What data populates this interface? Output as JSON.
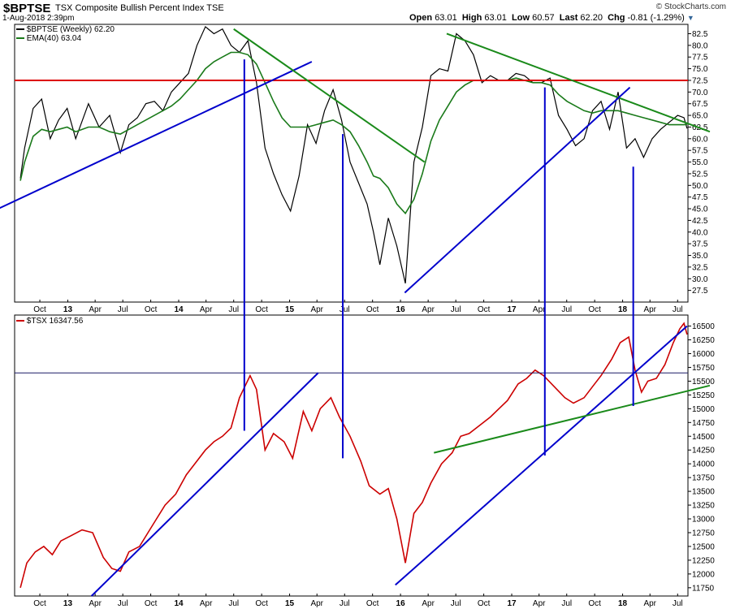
{
  "header": {
    "symbol": "$BPTSE",
    "name": "TSX Composite Bullish Percent Index  TSE",
    "date": "1-Aug-2018 2:39pm",
    "open_label": "Open",
    "open": "63.01",
    "high_label": "High",
    "high": "63.01",
    "low_label": "Low",
    "low": "60.57",
    "last_label": "Last",
    "last": "62.20",
    "chg_label": "Chg",
    "chg": "-0.81 (-1.29%)",
    "credit": "© StockCharts.com"
  },
  "colors": {
    "price": "#000000",
    "ema": "#1a7a1a",
    "tsx": "#cc0000",
    "trend_blue": "#0000cc",
    "trend_green": "#1a8a1a",
    "resistance": "#dd0000"
  },
  "chart_data": [
    {
      "type": "line",
      "legend": [
        "$BPTSE (Weekly) 62.20",
        "EMA(40) 63.04"
      ],
      "ylim": [
        25,
        84.5
      ],
      "yticks": [
        "82.5",
        "80.0",
        "77.5",
        "75.0",
        "72.5",
        "70.0",
        "67.5",
        "65.0",
        "62.5",
        "60.0",
        "57.5",
        "55.0",
        "52.5",
        "50.0",
        "47.5",
        "45.0",
        "42.5",
        "40.0",
        "37.5",
        "35.0",
        "32.5",
        "30.0",
        "27.5"
      ],
      "xticks": [
        "Oct",
        "13",
        "Apr",
        "Jul",
        "Oct",
        "14",
        "Apr",
        "Jul",
        "Oct",
        "15",
        "Apr",
        "Jul",
        "Oct",
        "16",
        "Apr",
        "Jul",
        "Oct",
        "17",
        "Apr",
        "Jul",
        "Oct",
        "18",
        "Apr",
        "Jul"
      ],
      "x": [
        "2012-07-29",
        "2012-08-12",
        "2012-09-09",
        "2012-10-07",
        "2012-11-04",
        "2012-12-02",
        "2012-12-30",
        "2013-01-27",
        "2013-03-10",
        "2013-04-14",
        "2013-05-19",
        "2013-06-23",
        "2013-07-21",
        "2013-08-18",
        "2013-09-15",
        "2013-10-13",
        "2013-11-10",
        "2013-12-08",
        "2014-01-05",
        "2014-02-02",
        "2014-03-02",
        "2014-03-30",
        "2014-04-27",
        "2014-05-25",
        "2014-06-22",
        "2014-07-20",
        "2014-08-17",
        "2014-09-14",
        "2014-10-12",
        "2014-11-09",
        "2014-12-07",
        "2015-01-04",
        "2015-02-01",
        "2015-03-01",
        "2015-03-29",
        "2015-04-26",
        "2015-05-24",
        "2015-06-21",
        "2015-07-19",
        "2015-08-16",
        "2015-09-13",
        "2015-10-04",
        "2015-10-25",
        "2015-11-22",
        "2015-12-20",
        "2016-01-17",
        "2016-02-14",
        "2016-03-13",
        "2016-04-10",
        "2016-05-08",
        "2016-06-05",
        "2016-07-03",
        "2016-07-31",
        "2016-08-28",
        "2016-09-25",
        "2016-10-23",
        "2016-11-20",
        "2016-12-18",
        "2017-01-15",
        "2017-02-12",
        "2017-03-12",
        "2017-04-09",
        "2017-05-07",
        "2017-06-04",
        "2017-07-02",
        "2017-07-30",
        "2017-08-27",
        "2017-09-24",
        "2017-10-22",
        "2017-11-19",
        "2017-12-17",
        "2018-01-14",
        "2018-02-11",
        "2018-03-11",
        "2018-04-08",
        "2018-05-06",
        "2018-06-03",
        "2018-07-01",
        "2018-07-22",
        "2018-08-01"
      ],
      "series": [
        {
          "name": "$BPTSE (Weekly) 62.20",
          "values": [
            51.5,
            58.0,
            66.5,
            68.5,
            60.0,
            64.0,
            66.5,
            60.0,
            67.5,
            62.5,
            65.0,
            57.0,
            63.0,
            64.5,
            67.5,
            68.0,
            66.0,
            70.0,
            72.0,
            74.0,
            80.0,
            84.0,
            82.5,
            83.5,
            80.0,
            78.5,
            81.0,
            72.0,
            58.0,
            52.5,
            48.0,
            44.5,
            52.0,
            63.0,
            59.0,
            66.0,
            70.5,
            64.0,
            55.0,
            50.5,
            46.0,
            40.0,
            33.0,
            43.0,
            37.0,
            29.0,
            55.0,
            62.5,
            73.5,
            75.0,
            74.5,
            82.5,
            81.0,
            78.0,
            72.0,
            73.5,
            72.5,
            72.5,
            74.0,
            73.5,
            72.0,
            72.0,
            73.0,
            65.0,
            62.0,
            58.5,
            60.0,
            66.0,
            68.0,
            62.0,
            70.0,
            58.0,
            60.0,
            56.0,
            60.0,
            62.0,
            63.5,
            65.0,
            64.5,
            62.2
          ]
        },
        {
          "name": "EMA(40) 63.04",
          "values": [
            51.0,
            55.0,
            60.5,
            62.0,
            61.5,
            62.0,
            62.5,
            61.5,
            62.5,
            62.5,
            61.5,
            61.0,
            62.0,
            63.0,
            64.0,
            65.0,
            66.0,
            67.0,
            68.5,
            70.5,
            72.5,
            75.0,
            76.5,
            77.5,
            78.5,
            78.5,
            78.0,
            76.0,
            72.0,
            68.0,
            64.5,
            62.5,
            62.5,
            62.5,
            63.0,
            63.5,
            64.0,
            63.0,
            61.5,
            58.5,
            55.0,
            52.0,
            51.5,
            49.5,
            46.0,
            44.0,
            47.0,
            52.5,
            59.5,
            64.0,
            67.0,
            70.0,
            71.5,
            72.5,
            72.5,
            72.5,
            72.5,
            72.5,
            73.0,
            72.5,
            72.0,
            72.0,
            71.5,
            69.5,
            68.0,
            67.0,
            66.0,
            65.5,
            66.0,
            66.0,
            66.0,
            65.5,
            65.0,
            64.5,
            64.0,
            63.5,
            63.0,
            63.0,
            63.0,
            63.04
          ]
        }
      ]
    },
    {
      "type": "line",
      "legend": [
        "$TSX 16347.56"
      ],
      "ylim": [
        11600,
        16700
      ],
      "yticks": [
        "16500",
        "16250",
        "16000",
        "15750",
        "15500",
        "15250",
        "15000",
        "14750",
        "14500",
        "14250",
        "14000",
        "13750",
        "13500",
        "13250",
        "13000",
        "12750",
        "12500",
        "12250",
        "12000",
        "11750"
      ],
      "xticks": [
        "Oct",
        "13",
        "Apr",
        "Jul",
        "Oct",
        "14",
        "Apr",
        "Jul",
        "Oct",
        "15",
        "Apr",
        "Jul",
        "Oct",
        "16",
        "Apr",
        "Jul",
        "Oct",
        "17",
        "Apr",
        "Jul",
        "Oct",
        "18",
        "Apr",
        "Jul"
      ],
      "x": [
        "2012-07-29",
        "2012-08-19",
        "2012-09-16",
        "2012-10-14",
        "2012-11-11",
        "2012-12-09",
        "2013-01-13",
        "2013-02-17",
        "2013-03-24",
        "2013-04-28",
        "2013-05-26",
        "2013-06-23",
        "2013-07-21",
        "2013-08-25",
        "2013-09-22",
        "2013-10-20",
        "2013-11-17",
        "2013-12-22",
        "2014-01-26",
        "2014-02-23",
        "2014-03-30",
        "2014-04-27",
        "2014-05-25",
        "2014-06-22",
        "2014-07-20",
        "2014-08-24",
        "2014-09-14",
        "2014-10-12",
        "2014-11-09",
        "2014-12-14",
        "2015-01-11",
        "2015-02-15",
        "2015-03-15",
        "2015-04-12",
        "2015-05-17",
        "2015-06-14",
        "2015-07-19",
        "2015-08-23",
        "2015-09-20",
        "2015-10-25",
        "2015-11-22",
        "2015-12-20",
        "2016-01-17",
        "2016-02-14",
        "2016-03-13",
        "2016-04-10",
        "2016-05-15",
        "2016-06-19",
        "2016-07-17",
        "2016-08-14",
        "2016-09-18",
        "2016-10-23",
        "2016-11-20",
        "2016-12-18",
        "2017-01-22",
        "2017-02-19",
        "2017-03-19",
        "2017-04-16",
        "2017-05-21",
        "2017-06-25",
        "2017-07-23",
        "2017-08-27",
        "2017-09-24",
        "2017-10-22",
        "2017-11-26",
        "2017-12-24",
        "2018-01-21",
        "2018-02-11",
        "2018-03-04",
        "2018-03-25",
        "2018-04-22",
        "2018-05-20",
        "2018-06-17",
        "2018-07-08",
        "2018-07-22",
        "2018-08-01"
      ],
      "series": [
        {
          "name": "$TSX 16347.56",
          "values": [
            11750,
            12200,
            12400,
            12500,
            12350,
            12600,
            12700,
            12800,
            12750,
            12300,
            12100,
            12050,
            12400,
            12500,
            12750,
            13000,
            13250,
            13450,
            13800,
            14000,
            14250,
            14400,
            14500,
            14650,
            15200,
            15600,
            15350,
            14250,
            14550,
            14400,
            14100,
            14950,
            14600,
            15000,
            15200,
            14850,
            14500,
            14050,
            13600,
            13450,
            13550,
            13000,
            12200,
            13100,
            13300,
            13650,
            14000,
            14200,
            14500,
            14550,
            14700,
            14850,
            15000,
            15150,
            15450,
            15550,
            15700,
            15600,
            15400,
            15200,
            15100,
            15200,
            15400,
            15600,
            15900,
            16200,
            16300,
            15700,
            15300,
            15500,
            15550,
            15800,
            16200,
            16450,
            16550,
            16347.56
          ]
        }
      ]
    }
  ],
  "overlays": {
    "upper_resistance_level": 72.5,
    "upper_trendlines": [
      {
        "color": "blue",
        "from": [
          "2012-05-01",
          44.5
        ],
        "to": [
          "2015-03-15",
          76.5
        ]
      },
      {
        "color": "green",
        "from": [
          "2014-07-01",
          83.5
        ],
        "to": [
          "2016-03-20",
          55.0
        ]
      },
      {
        "color": "green",
        "from": [
          "2016-06-01",
          82.5
        ],
        "to": [
          "2018-10-15",
          61.5
        ]
      },
      {
        "color": "blue",
        "from": [
          "2016-01-15",
          27.0
        ],
        "to": [
          "2018-01-25",
          71.0
        ]
      }
    ],
    "lower_level": 15650,
    "lower_trendlines": [
      {
        "color": "blue",
        "from": [
          "2013-03-20",
          11600
        ],
        "to": [
          "2015-04-05",
          15650
        ]
      },
      {
        "color": "blue",
        "from": [
          "2015-12-15",
          11800
        ],
        "to": [
          "2018-08-01",
          16500
        ]
      },
      {
        "color": "green",
        "from": [
          "2016-04-20",
          14200
        ],
        "to": [
          "2018-10-15",
          15420
        ]
      }
    ],
    "vertical_markers": [
      {
        "date": "2014-08-05",
        "top": 77.0,
        "bottom": 14600
      },
      {
        "date": "2015-06-25",
        "top": 61.0,
        "bottom": 14100
      },
      {
        "date": "2017-04-20",
        "top": 71.0,
        "bottom": 14150
      },
      {
        "date": "2018-02-05",
        "top": 54.0,
        "bottom": 15050
      }
    ]
  }
}
